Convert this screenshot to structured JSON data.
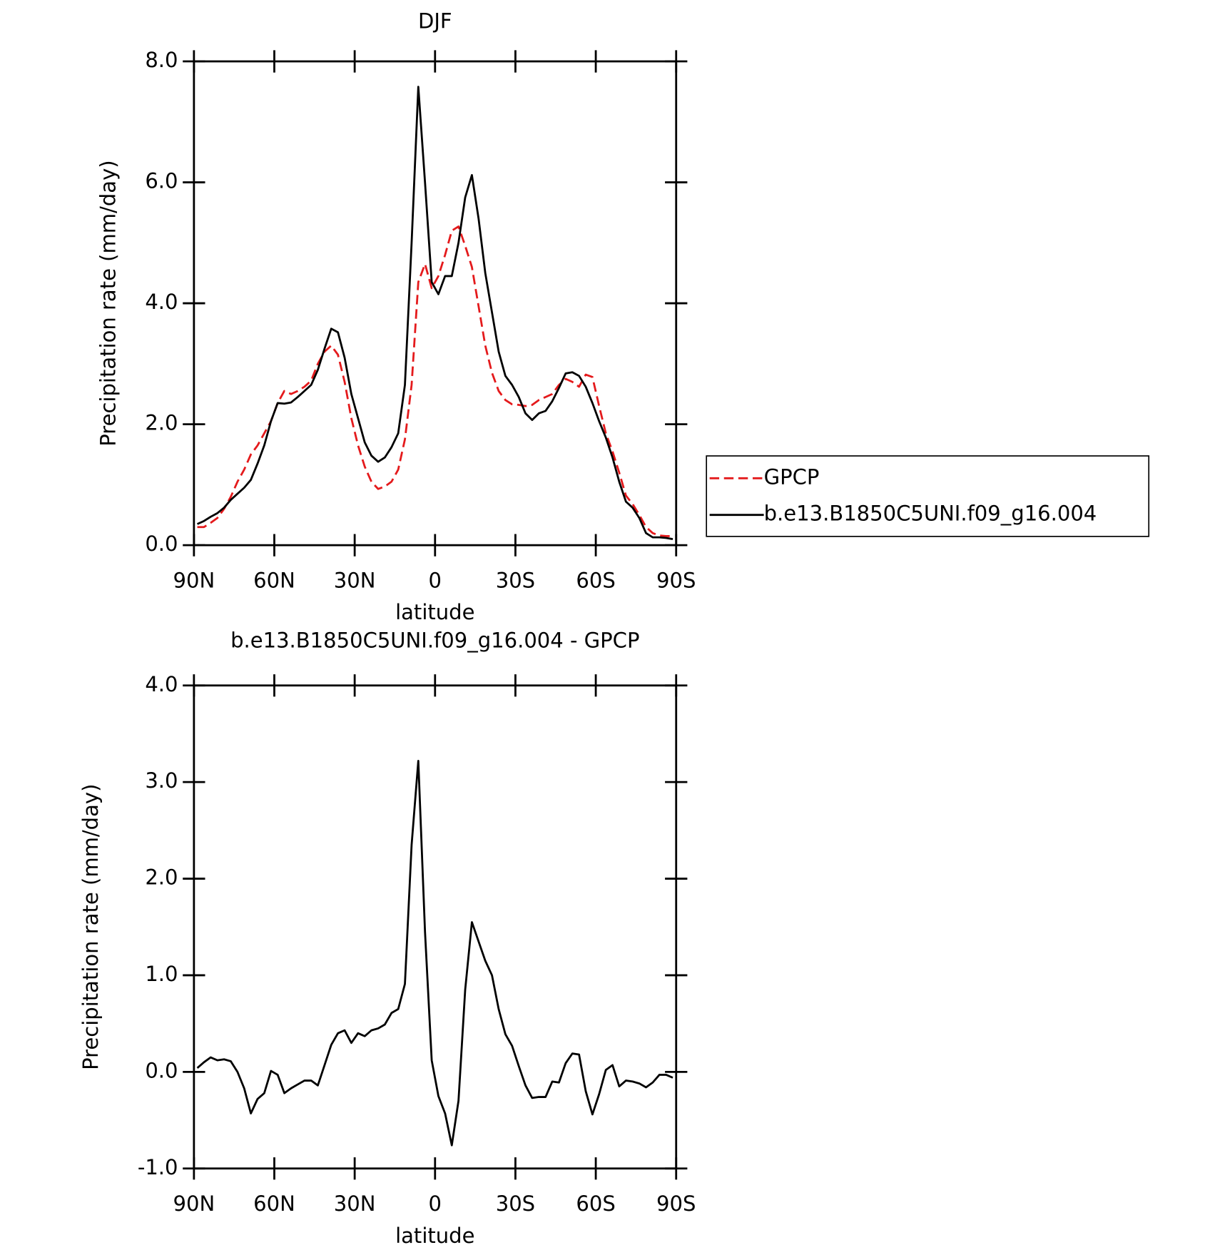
{
  "chart_data": [
    {
      "type": "line",
      "title": "DJF",
      "xlabel": "latitude",
      "ylabel": "Precipitation rate (mm/day)",
      "x": [
        88.75,
        86.25,
        83.75,
        81.25,
        78.75,
        76.25,
        73.75,
        71.25,
        68.75,
        66.25,
        63.75,
        61.25,
        58.75,
        56.25,
        53.75,
        51.25,
        48.75,
        46.25,
        43.75,
        41.25,
        38.75,
        36.25,
        33.75,
        31.25,
        28.75,
        26.25,
        23.75,
        21.25,
        18.75,
        16.25,
        13.75,
        11.25,
        8.75,
        6.25,
        3.75,
        1.25,
        -1.25,
        -3.75,
        -6.25,
        -8.75,
        -11.25,
        -13.75,
        -16.25,
        -18.75,
        -21.25,
        -23.75,
        -26.25,
        -28.75,
        -31.25,
        -33.75,
        -36.25,
        -38.75,
        -41.25,
        -43.75,
        -46.25,
        -48.75,
        -51.25,
        -53.75,
        -56.25,
        -58.75,
        -61.25,
        -63.75,
        -66.25,
        -68.75,
        -71.25,
        -73.75,
        -76.25,
        -78.75,
        -81.25,
        -83.75,
        -86.25,
        -88.75
      ],
      "series": [
        {
          "name": "GPCP",
          "color": "#e41a1c",
          "line_style": "dashed",
          "values": [
            0.3,
            0.3,
            0.37,
            0.45,
            0.6,
            0.8,
            1.05,
            1.25,
            1.5,
            1.65,
            1.85,
            2.05,
            2.35,
            2.55,
            2.5,
            2.55,
            2.62,
            2.72,
            3.0,
            3.2,
            3.3,
            3.15,
            2.7,
            2.1,
            1.65,
            1.3,
            1.05,
            0.93,
            0.97,
            1.05,
            1.25,
            1.75,
            2.65,
            4.35,
            4.65,
            4.25,
            4.45,
            4.8,
            5.2,
            5.27,
            4.95,
            4.6,
            3.95,
            3.3,
            2.85,
            2.55,
            2.4,
            2.33,
            2.32,
            2.3,
            2.32,
            2.4,
            2.45,
            2.5,
            2.65,
            2.75,
            2.7,
            2.62,
            2.82,
            2.78,
            2.3,
            1.85,
            1.55,
            1.2,
            0.82,
            0.68,
            0.5,
            0.3,
            0.2,
            0.16,
            0.15,
            0.15
          ]
        },
        {
          "name": "b.e13.B1850C5UNI.f09_g16.004",
          "color": "#000000",
          "line_style": "solid",
          "values": [
            0.35,
            0.4,
            0.47,
            0.53,
            0.62,
            0.75,
            0.85,
            0.95,
            1.08,
            1.35,
            1.65,
            2.05,
            2.35,
            2.34,
            2.36,
            2.45,
            2.55,
            2.65,
            2.9,
            3.25,
            3.58,
            3.52,
            3.1,
            2.5,
            2.1,
            1.7,
            1.48,
            1.38,
            1.45,
            1.62,
            1.85,
            2.65,
            5.0,
            7.58,
            6.0,
            4.35,
            4.15,
            4.45,
            4.45,
            5.0,
            5.75,
            6.12,
            5.4,
            4.5,
            3.85,
            3.2,
            2.8,
            2.65,
            2.45,
            2.18,
            2.07,
            2.18,
            2.22,
            2.38,
            2.6,
            2.84,
            2.86,
            2.8,
            2.62,
            2.35,
            2.05,
            1.78,
            1.45,
            1.05,
            0.72,
            0.62,
            0.45,
            0.2,
            0.13,
            0.13,
            0.12,
            0.1
          ]
        }
      ],
      "xlim": [
        90,
        -90
      ],
      "xticks": [
        {
          "value": 90,
          "label": "90N"
        },
        {
          "value": 60,
          "label": "60N"
        },
        {
          "value": 30,
          "label": "30N"
        },
        0,
        {
          "value": -30,
          "label": "30S"
        },
        {
          "value": -60,
          "label": "60S"
        },
        {
          "value": -90,
          "label": "90S"
        }
      ],
      "ylim": [
        0,
        8
      ],
      "yticks": [
        {
          "value": 0,
          "label": "0.0"
        },
        {
          "value": 2,
          "label": "2.0"
        },
        {
          "value": 4,
          "label": "4.0"
        },
        {
          "value": 6,
          "label": "6.0"
        },
        {
          "value": 8,
          "label": "8.0"
        }
      ],
      "legend": "right",
      "grid": false
    },
    {
      "type": "line",
      "title": "b.e13.B1850C5UNI.f09_g16.004 - GPCP",
      "xlabel": "latitude",
      "ylabel": "Precipitation rate (mm/day)",
      "x": [
        88.75,
        86.25,
        83.75,
        81.25,
        78.75,
        76.25,
        73.75,
        71.25,
        68.75,
        66.25,
        63.75,
        61.25,
        58.75,
        56.25,
        53.75,
        51.25,
        48.75,
        46.25,
        43.75,
        41.25,
        38.75,
        36.25,
        33.75,
        31.25,
        28.75,
        26.25,
        23.75,
        21.25,
        18.75,
        16.25,
        13.75,
        11.25,
        8.75,
        6.25,
        3.75,
        1.25,
        -1.25,
        -3.75,
        -6.25,
        -8.75,
        -11.25,
        -13.75,
        -16.25,
        -18.75,
        -21.25,
        -23.75,
        -26.25,
        -28.75,
        -31.25,
        -33.75,
        -36.25,
        -38.75,
        -41.25,
        -43.75,
        -46.25,
        -48.75,
        -51.25,
        -53.75,
        -56.25,
        -58.75,
        -61.25,
        -63.75,
        -66.25,
        -68.75,
        -71.25,
        -73.75,
        -76.25,
        -78.75,
        -81.25,
        -83.75,
        -86.25,
        -88.75
      ],
      "series": [
        {
          "color": "#000000",
          "line_style": "solid",
          "values": [
            0.04,
            0.1,
            0.15,
            0.12,
            0.13,
            0.11,
            0.0,
            -0.17,
            -0.43,
            -0.28,
            -0.22,
            0.01,
            -0.03,
            -0.22,
            -0.17,
            -0.13,
            -0.09,
            -0.09,
            -0.14,
            0.07,
            0.28,
            0.4,
            0.43,
            0.3,
            0.4,
            0.37,
            0.43,
            0.45,
            0.49,
            0.61,
            0.65,
            0.91,
            2.35,
            3.22,
            1.45,
            0.12,
            -0.25,
            -0.43,
            -0.76,
            -0.3,
            0.85,
            1.55,
            1.35,
            1.15,
            1.0,
            0.65,
            0.39,
            0.27,
            0.06,
            -0.14,
            -0.27,
            -0.26,
            -0.26,
            -0.1,
            -0.11,
            0.09,
            0.19,
            0.18,
            -0.2,
            -0.44,
            -0.23,
            0.02,
            0.07,
            -0.15,
            -0.09,
            -0.1,
            -0.12,
            -0.16,
            -0.11,
            -0.03,
            -0.03,
            -0.06
          ]
        }
      ],
      "xlim": [
        90,
        -90
      ],
      "xticks": [
        {
          "value": 90,
          "label": "90N"
        },
        {
          "value": 60,
          "label": "60N"
        },
        {
          "value": 30,
          "label": "30N"
        },
        0,
        {
          "value": -30,
          "label": "30S"
        },
        {
          "value": -60,
          "label": "60S"
        },
        {
          "value": -90,
          "label": "90S"
        }
      ],
      "ylim": [
        -1,
        4
      ],
      "yticks": [
        {
          "value": -1,
          "label": "-1.0"
        },
        {
          "value": 0,
          "label": "0.0"
        },
        {
          "value": 1,
          "label": "1.0"
        },
        {
          "value": 2,
          "label": "2.0"
        },
        {
          "value": 3,
          "label": "3.0"
        },
        {
          "value": 4,
          "label": "4.0"
        }
      ],
      "grid": false
    }
  ]
}
